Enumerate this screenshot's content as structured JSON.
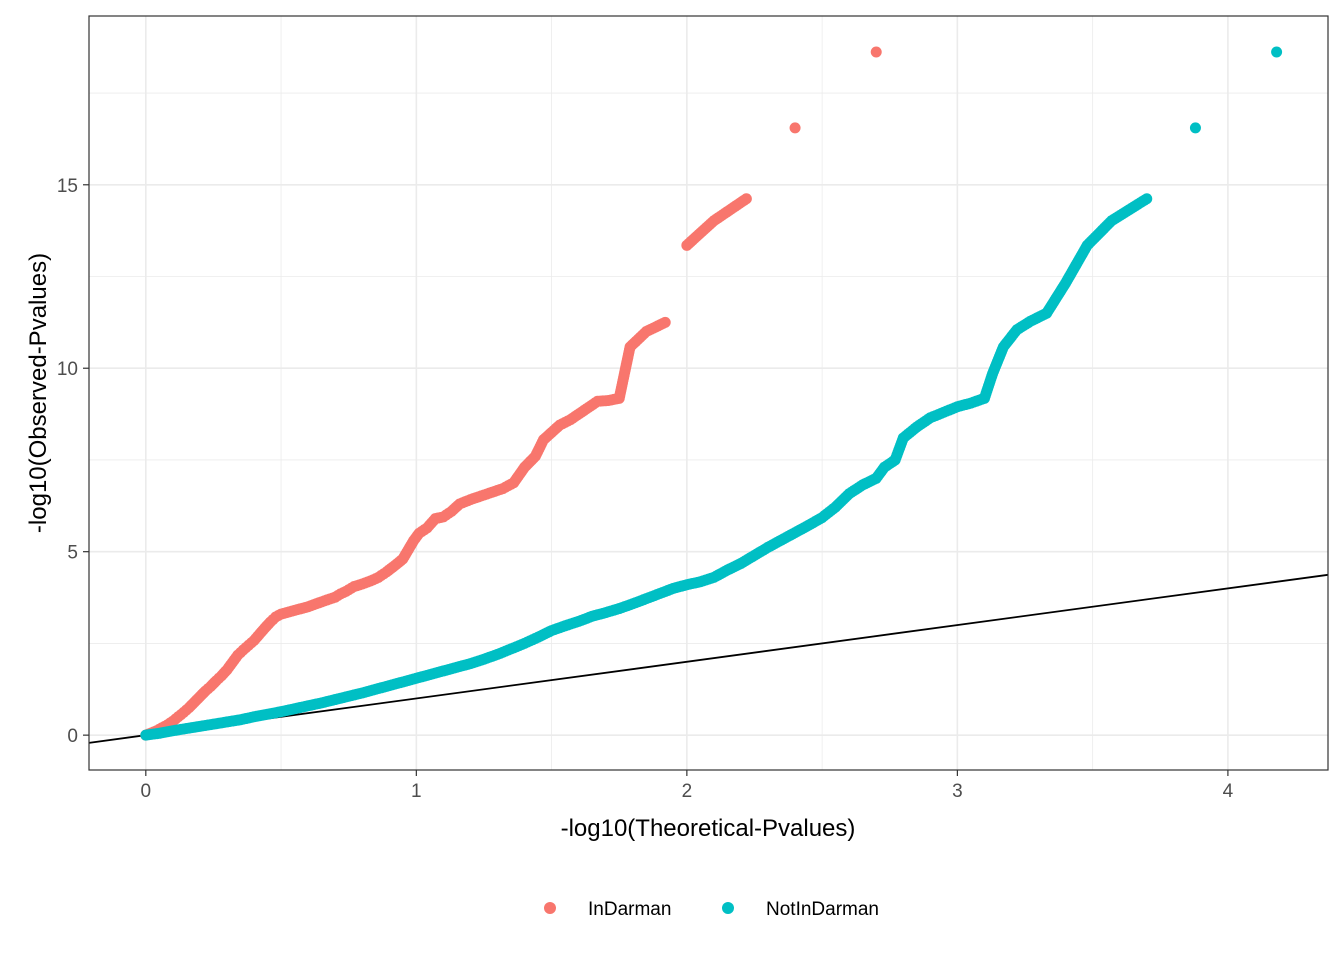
{
  "chart_data": {
    "type": "scatter",
    "title": "",
    "xlabel": "-log10(Theoretical-Pvalues)",
    "ylabel": "-log10(Observed-Pvalues)",
    "xlim": [
      -0.21,
      4.37
    ],
    "ylim": [
      -0.95,
      19.6
    ],
    "x_ticks": [
      0,
      1,
      2,
      3,
      4
    ],
    "x_tick_labels": [
      "0",
      "1",
      "2",
      "3",
      "4"
    ],
    "y_ticks": [
      0,
      5,
      10,
      15
    ],
    "y_tick_labels": [
      "0",
      "5",
      "10",
      "15"
    ],
    "grid": true,
    "legend_position": "bottom",
    "reference_line": {
      "slope": 1,
      "intercept": 0,
      "color": "#000000"
    },
    "series": [
      {
        "name": "InDarman",
        "color": "#F8766D",
        "points": [
          [
            0.0,
            0.0
          ],
          [
            0.02,
            0.06
          ],
          [
            0.04,
            0.12
          ],
          [
            0.06,
            0.2
          ],
          [
            0.08,
            0.28
          ],
          [
            0.1,
            0.38
          ],
          [
            0.12,
            0.5
          ],
          [
            0.14,
            0.62
          ],
          [
            0.16,
            0.75
          ],
          [
            0.18,
            0.9
          ],
          [
            0.2,
            1.05
          ],
          [
            0.22,
            1.2
          ],
          [
            0.24,
            1.33
          ],
          [
            0.26,
            1.48
          ],
          [
            0.28,
            1.62
          ],
          [
            0.3,
            1.78
          ],
          [
            0.32,
            1.98
          ],
          [
            0.34,
            2.18
          ],
          [
            0.36,
            2.32
          ],
          [
            0.38,
            2.45
          ],
          [
            0.4,
            2.58
          ],
          [
            0.42,
            2.75
          ],
          [
            0.44,
            2.92
          ],
          [
            0.46,
            3.08
          ],
          [
            0.48,
            3.22
          ],
          [
            0.5,
            3.3
          ],
          [
            0.53,
            3.36
          ],
          [
            0.56,
            3.42
          ],
          [
            0.6,
            3.5
          ],
          [
            0.63,
            3.58
          ],
          [
            0.66,
            3.66
          ],
          [
            0.7,
            3.76
          ],
          [
            0.72,
            3.85
          ],
          [
            0.74,
            3.92
          ],
          [
            0.77,
            4.05
          ],
          [
            0.8,
            4.12
          ],
          [
            0.83,
            4.2
          ],
          [
            0.86,
            4.3
          ],
          [
            0.89,
            4.45
          ],
          [
            0.92,
            4.62
          ],
          [
            0.95,
            4.8
          ],
          [
            0.97,
            5.05
          ],
          [
            0.99,
            5.3
          ],
          [
            1.01,
            5.5
          ],
          [
            1.04,
            5.65
          ],
          [
            1.07,
            5.9
          ],
          [
            1.1,
            5.95
          ],
          [
            1.13,
            6.1
          ],
          [
            1.16,
            6.3
          ],
          [
            1.2,
            6.42
          ],
          [
            1.24,
            6.52
          ],
          [
            1.28,
            6.62
          ],
          [
            1.32,
            6.72
          ],
          [
            1.36,
            6.88
          ],
          [
            1.4,
            7.3
          ],
          [
            1.44,
            7.6
          ],
          [
            1.47,
            8.05
          ],
          [
            1.5,
            8.25
          ],
          [
            1.53,
            8.45
          ],
          [
            1.57,
            8.6
          ],
          [
            1.62,
            8.85
          ],
          [
            1.67,
            9.1
          ],
          [
            1.71,
            9.12
          ],
          [
            1.75,
            9.18
          ],
          [
            1.79,
            10.58
          ],
          [
            1.85,
            11.0
          ],
          [
            1.92,
            11.25
          ],
          [
            2.0,
            13.35
          ],
          [
            2.1,
            14.02
          ],
          [
            2.22,
            14.62
          ],
          [
            2.4,
            16.55
          ],
          [
            2.7,
            18.62
          ]
        ]
      },
      {
        "name": "NotInDarman",
        "color": "#00BFC4",
        "points": [
          [
            0.0,
            0.0
          ],
          [
            0.05,
            0.05
          ],
          [
            0.1,
            0.12
          ],
          [
            0.15,
            0.18
          ],
          [
            0.2,
            0.24
          ],
          [
            0.25,
            0.3
          ],
          [
            0.3,
            0.36
          ],
          [
            0.35,
            0.42
          ],
          [
            0.4,
            0.5
          ],
          [
            0.45,
            0.57
          ],
          [
            0.5,
            0.64
          ],
          [
            0.55,
            0.72
          ],
          [
            0.6,
            0.8
          ],
          [
            0.65,
            0.88
          ],
          [
            0.7,
            0.97
          ],
          [
            0.75,
            1.06
          ],
          [
            0.8,
            1.15
          ],
          [
            0.85,
            1.25
          ],
          [
            0.9,
            1.35
          ],
          [
            0.95,
            1.45
          ],
          [
            1.0,
            1.55
          ],
          [
            1.05,
            1.65
          ],
          [
            1.1,
            1.75
          ],
          [
            1.15,
            1.85
          ],
          [
            1.2,
            1.95
          ],
          [
            1.25,
            2.07
          ],
          [
            1.3,
            2.2
          ],
          [
            1.35,
            2.35
          ],
          [
            1.4,
            2.5
          ],
          [
            1.45,
            2.67
          ],
          [
            1.5,
            2.85
          ],
          [
            1.55,
            2.98
          ],
          [
            1.6,
            3.1
          ],
          [
            1.65,
            3.24
          ],
          [
            1.7,
            3.34
          ],
          [
            1.75,
            3.45
          ],
          [
            1.8,
            3.58
          ],
          [
            1.85,
            3.72
          ],
          [
            1.9,
            3.86
          ],
          [
            1.95,
            4.0
          ],
          [
            2.0,
            4.1
          ],
          [
            2.05,
            4.18
          ],
          [
            2.1,
            4.3
          ],
          [
            2.15,
            4.5
          ],
          [
            2.2,
            4.68
          ],
          [
            2.25,
            4.9
          ],
          [
            2.3,
            5.12
          ],
          [
            2.35,
            5.32
          ],
          [
            2.4,
            5.52
          ],
          [
            2.45,
            5.72
          ],
          [
            2.5,
            5.93
          ],
          [
            2.55,
            6.22
          ],
          [
            2.6,
            6.58
          ],
          [
            2.65,
            6.82
          ],
          [
            2.7,
            7.0
          ],
          [
            2.73,
            7.3
          ],
          [
            2.77,
            7.5
          ],
          [
            2.8,
            8.1
          ],
          [
            2.85,
            8.4
          ],
          [
            2.9,
            8.65
          ],
          [
            2.95,
            8.8
          ],
          [
            3.0,
            8.95
          ],
          [
            3.05,
            9.05
          ],
          [
            3.1,
            9.18
          ],
          [
            3.13,
            9.85
          ],
          [
            3.17,
            10.58
          ],
          [
            3.22,
            11.05
          ],
          [
            3.27,
            11.28
          ],
          [
            3.33,
            11.5
          ],
          [
            3.4,
            12.32
          ],
          [
            3.48,
            13.35
          ],
          [
            3.57,
            14.02
          ],
          [
            3.7,
            14.62
          ],
          [
            3.88,
            16.55
          ],
          [
            4.18,
            18.62
          ]
        ]
      }
    ]
  }
}
